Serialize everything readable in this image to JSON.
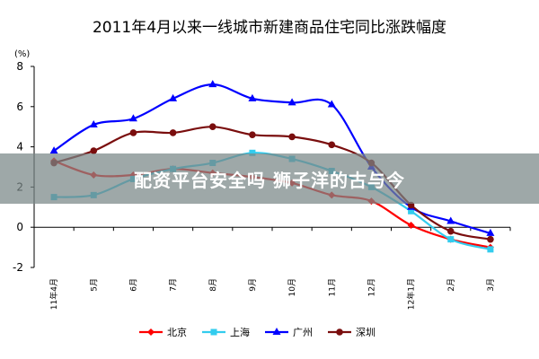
{
  "chart_data": {
    "type": "line",
    "title": "2011年4月以来一线城市新建商品住宅同比涨跌幅度",
    "ylabel": "(%)",
    "xlabel": "",
    "ylim": [
      -2,
      8
    ],
    "yticks": [
      -2,
      0,
      2,
      4,
      6,
      8
    ],
    "categories": [
      "11年4月",
      "5月",
      "6月",
      "7月",
      "8月",
      "9月",
      "10月",
      "11月",
      "12月",
      "12年1月",
      "2月",
      "3月"
    ],
    "grid": false,
    "legend": "bottom",
    "series": [
      {
        "name": "北京",
        "color": "#ff0000",
        "marker": "diamond",
        "values": [
          3.3,
          2.6,
          2.6,
          2.9,
          2.7,
          2.5,
          2.2,
          1.6,
          1.3,
          0.1,
          -0.6,
          -1.0
        ]
      },
      {
        "name": "上海",
        "color": "#33ccee",
        "marker": "square",
        "values": [
          1.5,
          1.6,
          2.4,
          2.9,
          3.2,
          3.7,
          3.4,
          2.8,
          2.0,
          0.8,
          -0.6,
          -1.1
        ]
      },
      {
        "name": "广州",
        "color": "#0000ff",
        "marker": "triangle",
        "values": [
          3.8,
          5.1,
          5.4,
          6.4,
          7.1,
          6.4,
          6.2,
          6.1,
          3.0,
          1.0,
          0.3,
          -0.3
        ]
      },
      {
        "name": "深圳",
        "color": "#7a0e0e",
        "marker": "circle",
        "values": [
          3.2,
          3.8,
          4.7,
          4.7,
          5.0,
          4.6,
          4.5,
          4.1,
          3.2,
          1.1,
          -0.2,
          -0.6
        ]
      }
    ]
  },
  "overlay": {
    "banner_text": "配资平台安全吗 狮子洋的古与今"
  }
}
